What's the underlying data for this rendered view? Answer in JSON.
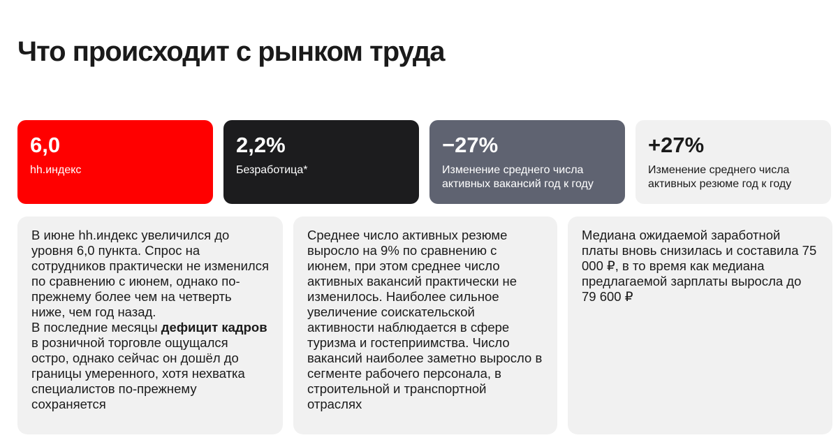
{
  "header": {
    "title": "Что происходит с рынком труда"
  },
  "cards": [
    {
      "value": "6,0",
      "label": "hh.индекс",
      "style": "red"
    },
    {
      "value": "2,2%",
      "label": "Безработица*",
      "style": "dark"
    },
    {
      "value": "−27%",
      "label": "Изменение среднего числа активных вакансий год к году",
      "style": "gray"
    },
    {
      "value": "+27%",
      "label": "Изменение среднего числа активных резюме год к году",
      "style": "light"
    }
  ],
  "panels": [
    {
      "paragraphs": [
        [
          {
            "text": "В июне hh.индекс увеличился до уровня 6,0 пункта. Спрос на сотрудников практически не изменился по сравнению с июнем, однако по-прежнему более чем на четверть ниже, чем год назад.",
            "bold": false
          }
        ],
        [
          {
            "text": "В последние месяцы ",
            "bold": false
          },
          {
            "text": "дефицит кадров",
            "bold": true
          },
          {
            "text": " в розничной торговле ощущался остро, однако сейчас он дошёл до границы умеренного, хотя нехватка специалистов по-прежнему сохраняется",
            "bold": false
          }
        ]
      ]
    },
    {
      "paragraphs": [
        [
          {
            "text": "Среднее число активных резюме выросло на 9% по сравнению с июнем, при этом среднее число активных вакансий практически не изменилось. Наиболее сильное увеличение соискательской активности наблюдается в сфере туризма и гостеприимства. Число вакансий наиболее заметно выросло в сегменте рабочего персонала, в строительной и транспортной отраслях",
            "bold": false
          }
        ]
      ]
    },
    {
      "paragraphs": [
        [
          {
            "text": "Медиана ожидаемой заработной платы вновь снизилась и составила 75 000 ₽, в то время как медиана предлагаемой зарплаты выросла до 79 600 ₽",
            "bold": false
          }
        ]
      ]
    }
  ]
}
